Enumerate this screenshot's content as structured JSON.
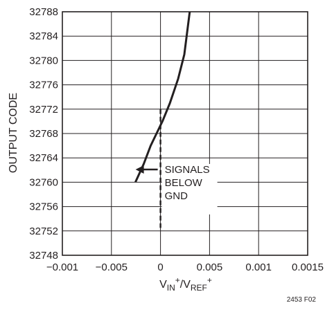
{
  "chart_data": {
    "type": "line",
    "title": "",
    "xlabel": {
      "v1": "V",
      "s1": "IN",
      "p1": "+",
      "slash": "/V",
      "s2": "REF",
      "p2": "+"
    },
    "ylabel": "OUTPUT CODE",
    "x_tick_labels": [
      "−0.001",
      "−0.005",
      "0",
      "0.005",
      "0.001",
      "0.0015"
    ],
    "y_ticks": [
      32748,
      32752,
      32756,
      32760,
      32764,
      32768,
      32772,
      32776,
      32780,
      32784,
      32788
    ],
    "ylim": [
      32748,
      32788
    ],
    "grid": true,
    "series": [
      {
        "x_position": [
          -0.00256,
          -0.00171,
          -0.001,
          0.0002,
          0.00096,
          0.0018,
          0.00243,
          0.00298
        ],
        "y": [
          32760,
          32763,
          32766,
          32770,
          32773,
          32777,
          32781,
          32788
        ]
      }
    ],
    "reference_line": {
      "x_position": 0,
      "y_range": [
        32752.5,
        32772
      ]
    },
    "annotation": {
      "lines": [
        "SIGNALS",
        "BELOW",
        "GND"
      ]
    },
    "figure_code": "2453 F02"
  }
}
